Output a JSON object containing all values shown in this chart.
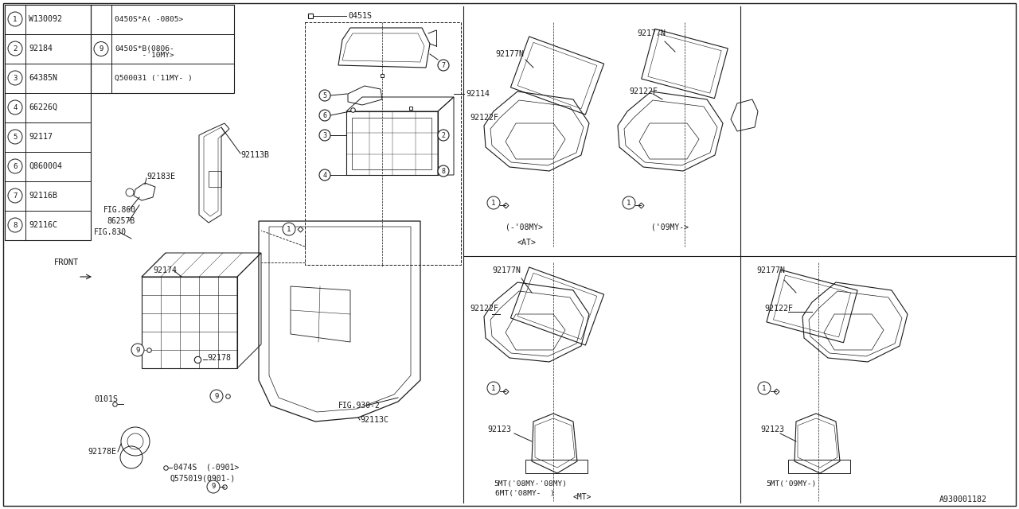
{
  "bg_color": "#ffffff",
  "line_color": "#1a1a1a",
  "fig_width": 12.8,
  "fig_height": 6.4,
  "diagram_ref": "A930001182",
  "table": {
    "rows": [
      {
        "n": "1",
        "code": "W130092"
      },
      {
        "n": "2",
        "code": "92184"
      },
      {
        "n": "3",
        "code": "64385N"
      },
      {
        "n": "4",
        "code": "66226Q"
      },
      {
        "n": "5",
        "code": "92117"
      },
      {
        "n": "6",
        "code": "Q860004"
      },
      {
        "n": "7",
        "code": "92116B"
      },
      {
        "n": "8",
        "code": "92116C"
      }
    ],
    "n9_code1": "0450S*A( -0805>",
    "n9_code2": "0450S*B(0806-",
    "n9_code2b": "      -'10MY>",
    "n9_code3": "Q500031 ('11MY- )"
  }
}
